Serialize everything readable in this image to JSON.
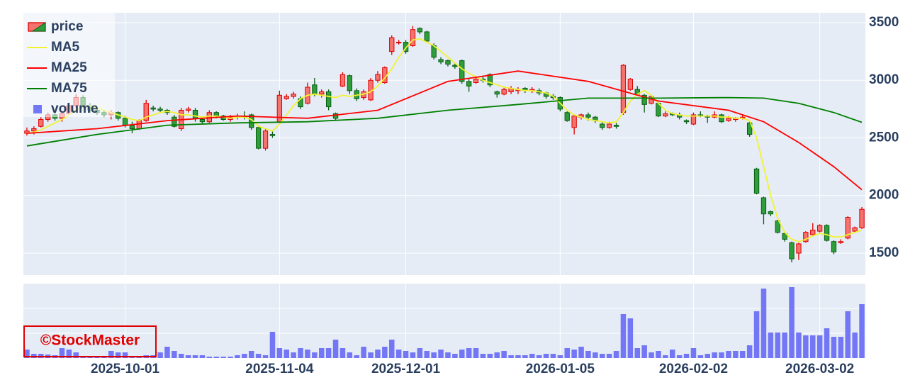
{
  "chart_data": {
    "type": "candlestick",
    "legend": "top-left",
    "grid": true,
    "watermark": "©StockMaster",
    "price_name": "price",
    "increasing_color": "#f4736e",
    "increasing_line": "#e00000",
    "decreasing_color": "#2f9e3a",
    "decreasing_line": "#0a5d14",
    "categories": [
      "2025-09-09",
      "2025-09-10",
      "2025-09-11",
      "2025-09-12",
      "2025-09-16",
      "2025-09-17",
      "2025-09-18",
      "2025-09-19",
      "2025-09-22",
      "2025-09-24",
      "2025-09-25",
      "2025-09-26",
      "2025-09-29",
      "2025-09-30",
      "2025-10-01",
      "2025-10-02",
      "2025-10-03",
      "2025-10-06",
      "2025-10-07",
      "2025-10-08",
      "2025-10-09",
      "2025-10-10",
      "2025-10-14",
      "2025-10-15",
      "2025-10-16",
      "2025-10-17",
      "2025-10-20",
      "2025-10-21",
      "2025-10-22",
      "2025-10-23",
      "2025-10-24",
      "2025-10-27",
      "2025-10-28",
      "2025-10-29",
      "2025-10-30",
      "2025-10-31",
      "2025-11-04",
      "2025-11-05",
      "2025-11-06",
      "2025-11-07",
      "2025-11-10",
      "2025-11-11",
      "2025-11-12",
      "2025-11-13",
      "2025-11-14",
      "2025-11-17",
      "2025-11-18",
      "2025-11-19",
      "2025-11-20",
      "2025-11-21",
      "2025-11-25",
      "2025-11-26",
      "2025-11-27",
      "2025-11-28",
      "2025-12-01",
      "2025-12-02",
      "2025-12-03",
      "2025-12-04",
      "2025-12-05",
      "2025-12-08",
      "2025-12-09",
      "2025-12-10",
      "2025-12-11",
      "2025-12-12",
      "2025-12-15",
      "2025-12-16",
      "2025-12-17",
      "2025-12-18",
      "2025-12-19",
      "2025-12-22",
      "2025-12-23",
      "2025-12-24",
      "2025-12-25",
      "2025-12-26",
      "2025-12-29",
      "2025-12-30",
      "2026-01-05",
      "2026-01-06",
      "2026-01-07",
      "2026-01-08",
      "2026-01-09",
      "2026-01-13",
      "2026-01-14",
      "2026-01-15",
      "2026-01-16",
      "2026-01-19",
      "2026-01-20",
      "2026-01-21",
      "2026-01-22",
      "2026-01-23",
      "2026-01-26",
      "2026-01-27",
      "2026-01-28",
      "2026-01-29",
      "2026-01-30",
      "2026-02-02",
      "2026-02-03",
      "2026-02-04",
      "2026-02-05",
      "2026-02-06",
      "2026-02-09",
      "2026-02-10",
      "2026-02-12",
      "2026-02-13",
      "2026-02-16",
      "2026-02-17",
      "2026-02-18",
      "2026-02-19",
      "2026-02-20",
      "2026-02-24",
      "2026-02-25",
      "2026-02-26",
      "2026-02-27",
      "2026-03-02",
      "2026-03-03",
      "2026-03-04",
      "2026-03-05",
      "2026-03-06",
      "2026-03-09",
      "2026-03-10"
    ],
    "open": [
      2540,
      2560,
      2600,
      2660,
      2700,
      2670,
      2710,
      2780,
      2850,
      2780,
      2740,
      2720,
      2700,
      2720,
      2670,
      2610,
      2580,
      2650,
      2760,
      2750,
      2740,
      2680,
      2580,
      2740,
      2740,
      2660,
      2640,
      2720,
      2690,
      2660,
      2680,
      2690,
      2700,
      2590,
      2410,
      2530,
      2640,
      2840,
      2860,
      2840,
      2800,
      2960,
      2880,
      2900,
      2710,
      2950,
      3040,
      2910,
      2850,
      2830,
      3000,
      2980,
      3250,
      3330,
      3330,
      3300,
      3450,
      3420,
      3300,
      3180,
      3170,
      3130,
      3170,
      2990,
      2980,
      3010,
      3050,
      2900,
      2880,
      2900,
      2910,
      2930,
      2920,
      2910,
      2890,
      2860,
      2850,
      2720,
      2590,
      2680,
      2700,
      2680,
      2620,
      2590,
      2610,
      2720,
      2920,
      2920,
      2870,
      2800,
      2800,
      2690,
      2710,
      2700,
      2650,
      2620,
      2700,
      2690,
      2680,
      2700,
      2650,
      2660,
      2680,
      2630,
      2230,
      1980,
      1860,
      1780,
      1670,
      1590,
      1500,
      1600,
      1660,
      1690,
      1740,
      1600,
      1590,
      1630,
      1690,
      1720
    ],
    "high": [
      2590,
      2600,
      2680,
      2720,
      2740,
      2720,
      2800,
      2880,
      2870,
      2800,
      2760,
      2740,
      2740,
      2730,
      2690,
      2640,
      2660,
      2830,
      2780,
      2770,
      2750,
      2700,
      2760,
      2770,
      2760,
      2680,
      2740,
      2730,
      2700,
      2700,
      2710,
      2730,
      2710,
      2610,
      2580,
      2560,
      2910,
      2880,
      2900,
      2860,
      2980,
      3020,
      2920,
      2920,
      2720,
      3070,
      3050,
      2930,
      2920,
      3020,
      3080,
      3120,
      3390,
      3350,
      3350,
      3470,
      3460,
      3430,
      3320,
      3200,
      3180,
      3150,
      3180,
      3010,
      3030,
      3040,
      3060,
      2910,
      2940,
      2950,
      2940,
      2940,
      2940,
      2930,
      2900,
      2880,
      2860,
      2730,
      2700,
      2710,
      2720,
      2690,
      2640,
      2640,
      2630,
      3140,
      3020,
      2950,
      2880,
      2870,
      2810,
      2730,
      2720,
      2720,
      2660,
      2720,
      2730,
      2700,
      2730,
      2710,
      2690,
      2680,
      2700,
      2640,
      2240,
      1990,
      1870,
      1790,
      1680,
      1600,
      1590,
      1690,
      1760,
      1750,
      1750,
      1610,
      1620,
      1820,
      1730,
      1900
    ],
    "low": [
      2520,
      2530,
      2590,
      2640,
      2650,
      2640,
      2700,
      2760,
      2760,
      2720,
      2700,
      2680,
      2660,
      2650,
      2590,
      2540,
      2570,
      2640,
      2730,
      2720,
      2700,
      2590,
      2560,
      2720,
      2640,
      2620,
      2630,
      2670,
      2650,
      2640,
      2660,
      2660,
      2570,
      2400,
      2390,
      2500,
      2630,
      2830,
      2840,
      2750,
      2790,
      2860,
      2850,
      2740,
      2650,
      2940,
      2880,
      2820,
      2830,
      2820,
      2980,
      2970,
      3220,
      3310,
      3230,
      3290,
      3400,
      3330,
      3180,
      3140,
      3120,
      3100,
      2970,
      2900,
      2970,
      2980,
      2940,
      2850,
      2870,
      2880,
      2880,
      2890,
      2890,
      2870,
      2840,
      2830,
      2730,
      2640,
      2530,
      2660,
      2650,
      2630,
      2570,
      2580,
      2580,
      2700,
      2910,
      2870,
      2720,
      2790,
      2680,
      2680,
      2690,
      2660,
      2620,
      2610,
      2680,
      2630,
      2670,
      2630,
      2640,
      2640,
      2660,
      2510,
      2010,
      1750,
      1820,
      1670,
      1600,
      1420,
      1440,
      1590,
      1650,
      1680,
      1600,
      1490,
      1580,
      1620,
      1680,
      1710
    ],
    "close": [
      2560,
      2580,
      2660,
      2700,
      2670,
      2710,
      2780,
      2850,
      2780,
      2740,
      2720,
      2700,
      2720,
      2670,
      2610,
      2580,
      2650,
      2800,
      2750,
      2740,
      2720,
      2600,
      2740,
      2750,
      2670,
      2640,
      2720,
      2690,
      2660,
      2680,
      2690,
      2680,
      2590,
      2410,
      2560,
      2520,
      2870,
      2860,
      2880,
      2770,
      2940,
      2880,
      2900,
      2770,
      2670,
      3050,
      2910,
      2840,
      2900,
      3000,
      3050,
      3110,
      3370,
      3330,
      3250,
      3440,
      3420,
      3340,
      3200,
      3160,
      3140,
      3120,
      2990,
      2950,
      3010,
      3000,
      2960,
      2880,
      2920,
      2930,
      2920,
      2910,
      2920,
      2890,
      2860,
      2850,
      2750,
      2650,
      2690,
      2700,
      2680,
      2650,
      2590,
      2620,
      2600,
      3130,
      3010,
      2880,
      2790,
      2860,
      2690,
      2710,
      2700,
      2680,
      2640,
      2700,
      2690,
      2680,
      2700,
      2640,
      2670,
      2670,
      2680,
      2530,
      2020,
      1840,
      1840,
      1680,
      1620,
      1450,
      1580,
      1680,
      1700,
      1740,
      1610,
      1510,
      1600,
      1810,
      1720,
      1880
    ],
    "ylim": [
      1309,
      3586
    ],
    "yticks": [
      1500,
      2000,
      2500,
      3000,
      3500
    ],
    "xticks": [
      "2025-10-01",
      "2025-11-04",
      "2025-12-01",
      "2026-01-05",
      "2026-02-02",
      "2026-03-02"
    ],
    "series": [
      {
        "name": "MA5",
        "color": "#f2f230",
        "values": [
          2540,
          2550,
          2570,
          2600,
          2630,
          2660,
          2700,
          2750,
          2770,
          2780,
          2760,
          2740,
          2720,
          2700,
          2680,
          2660,
          2650,
          2680,
          2700,
          2720,
          2730,
          2720,
          2700,
          2700,
          2690,
          2680,
          2690,
          2690,
          2680,
          2670,
          2680,
          2680,
          2660,
          2600,
          2580,
          2560,
          2620,
          2700,
          2780,
          2840,
          2870,
          2880,
          2870,
          2860,
          2850,
          2870,
          2860,
          2870,
          2880,
          2900,
          2950,
          3020,
          3100,
          3200,
          3280,
          3350,
          3360,
          3330,
          3300,
          3250,
          3200,
          3150,
          3100,
          3060,
          3030,
          3000,
          2980,
          2960,
          2940,
          2930,
          2920,
          2910,
          2910,
          2900,
          2890,
          2860,
          2800,
          2740,
          2700,
          2680,
          2660,
          2650,
          2640,
          2630,
          2640,
          2720,
          2820,
          2880,
          2910,
          2870,
          2800,
          2740,
          2710,
          2700,
          2690,
          2690,
          2690,
          2690,
          2690,
          2680,
          2680,
          2670,
          2670,
          2650,
          2500,
          2250,
          2000,
          1800,
          1680,
          1620,
          1600,
          1620,
          1650,
          1670,
          1660,
          1640,
          1640,
          1660,
          1680,
          1700
        ]
      },
      {
        "name": "MA25",
        "color": "#ff0000",
        "x": [
          "2025-09-09",
          "2025-09-25",
          "2025-10-09",
          "2025-10-24",
          "2025-11-10",
          "2025-11-25",
          "2025-12-09",
          "2025-12-23",
          "2026-01-09",
          "2026-01-26",
          "2026-02-09",
          "2026-02-17",
          "2026-02-25",
          "2026-03-04",
          "2026-03-10"
        ],
        "values": [
          2540,
          2580,
          2650,
          2690,
          2670,
          2740,
          2990,
          3080,
          2990,
          2820,
          2740,
          2640,
          2460,
          2250,
          2050
        ]
      },
      {
        "name": "MA75",
        "color": "#008000",
        "x": [
          "2025-09-09",
          "2025-09-25",
          "2025-10-09",
          "2025-10-24",
          "2025-11-10",
          "2025-11-25",
          "2025-12-09",
          "2025-12-23",
          "2026-01-09",
          "2026-01-26",
          "2026-02-09",
          "2026-02-17",
          "2026-02-25",
          "2026-03-04",
          "2026-03-10"
        ],
        "values": [
          2430,
          2530,
          2610,
          2630,
          2640,
          2670,
          2740,
          2790,
          2845,
          2845,
          2850,
          2845,
          2800,
          2720,
          2635
        ]
      }
    ],
    "volume": {
      "name": "volume",
      "color": "#7377f6",
      "ylim": [
        0,
        2100
      ],
      "yticks": [
        700,
        1400
      ],
      "values": [
        240,
        120,
        120,
        100,
        80,
        280,
        240,
        160,
        60,
        60,
        40,
        40,
        200,
        160,
        160,
        40,
        40,
        80,
        80,
        160,
        320,
        200,
        120,
        80,
        80,
        80,
        40,
        40,
        40,
        40,
        80,
        120,
        200,
        120,
        80,
        740,
        280,
        240,
        160,
        280,
        240,
        160,
        280,
        280,
        520,
        280,
        160,
        80,
        320,
        160,
        240,
        320,
        520,
        240,
        200,
        160,
        280,
        200,
        160,
        240,
        160,
        120,
        240,
        280,
        280,
        120,
        120,
        160,
        200,
        80,
        80,
        80,
        120,
        80,
        120,
        120,
        80,
        280,
        240,
        320,
        200,
        160,
        120,
        120,
        200,
        1240,
        1120,
        280,
        360,
        160,
        200,
        80,
        240,
        80,
        120,
        280,
        80,
        120,
        160,
        160,
        200,
        200,
        200,
        360,
        1320,
        1960,
        720,
        720,
        720,
        2000,
        720,
        640,
        640,
        640,
        840,
        600,
        600,
        1320,
        720,
        1520
      ]
    }
  }
}
